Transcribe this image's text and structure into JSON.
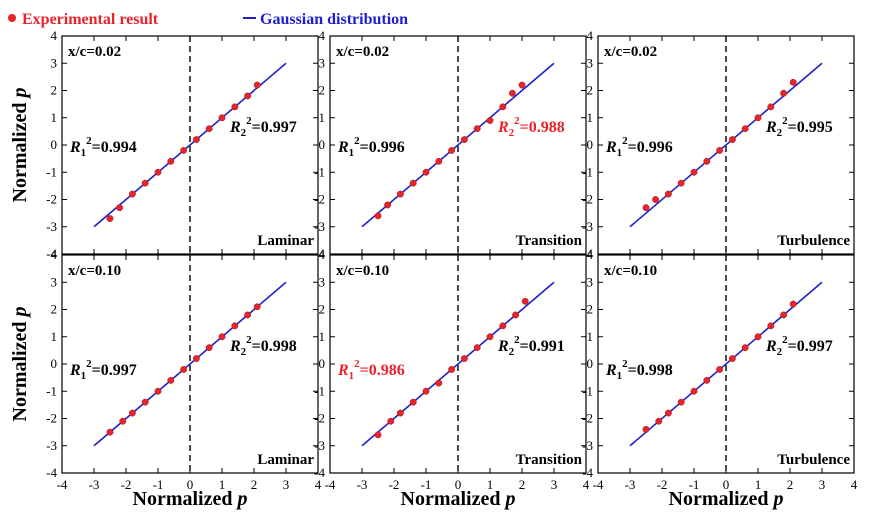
{
  "legend": {
    "experimental": "Experimental result",
    "gaussian": "Gaussian distribution",
    "colors": {
      "experimental": "#e8232a",
      "gaussian": "#1f1fcf"
    }
  },
  "axis_titles": {
    "x": "Normalized",
    "y": "Normalized",
    "symbol": "p"
  },
  "ticks": {
    "x": [
      "-4",
      "-3",
      "-2",
      "-1",
      "0",
      "1",
      "2",
      "3",
      "4"
    ],
    "y": [
      "4",
      "3",
      "2",
      "1",
      "0",
      "-1",
      "-2",
      "-3",
      "-4"
    ]
  },
  "highlight_color": "#e8232a",
  "chart_data": [
    {
      "type": "scatter",
      "xlim": [
        -4,
        4
      ],
      "ylim": [
        -4,
        4
      ],
      "position_label": "x/c=0.02",
      "regime": "Laminar",
      "r1": "=0.994",
      "r2": "=0.997",
      "r1_highlight": false,
      "r2_highlight": false,
      "fit_line": {
        "x": [
          -3,
          3
        ],
        "y": [
          -3,
          3
        ]
      },
      "points": {
        "x": [
          -2.5,
          -2.2,
          -1.8,
          -1.4,
          -1.0,
          -0.6,
          -0.2,
          0.2,
          0.6,
          1.0,
          1.4,
          1.8,
          2.1
        ],
        "y": [
          -2.7,
          -2.3,
          -1.8,
          -1.4,
          -1.0,
          -0.6,
          -0.2,
          0.2,
          0.6,
          1.0,
          1.4,
          1.8,
          2.2
        ]
      }
    },
    {
      "type": "scatter",
      "xlim": [
        -4,
        4
      ],
      "ylim": [
        -4,
        4
      ],
      "position_label": "x/c=0.02",
      "regime": "Transition",
      "r1": "=0.996",
      "r2": "=0.988",
      "r1_highlight": false,
      "r2_highlight": true,
      "fit_line": {
        "x": [
          -3,
          3
        ],
        "y": [
          -3,
          3
        ]
      },
      "points": {
        "x": [
          -2.5,
          -2.2,
          -1.8,
          -1.4,
          -1.0,
          -0.6,
          -0.2,
          0.2,
          0.6,
          1.0,
          1.4,
          1.7,
          2.0
        ],
        "y": [
          -2.6,
          -2.2,
          -1.8,
          -1.4,
          -1.0,
          -0.6,
          -0.2,
          0.2,
          0.6,
          0.9,
          1.4,
          1.9,
          2.2
        ]
      }
    },
    {
      "type": "scatter",
      "xlim": [
        -4,
        4
      ],
      "ylim": [
        -4,
        4
      ],
      "position_label": "x/c=0.02",
      "regime": "Turbulence",
      "r1": "=0.996",
      "r2": "=0.995",
      "r1_highlight": false,
      "r2_highlight": false,
      "fit_line": {
        "x": [
          -3,
          3
        ],
        "y": [
          -3,
          3
        ]
      },
      "points": {
        "x": [
          -2.5,
          -2.2,
          -1.8,
          -1.4,
          -1.0,
          -0.6,
          -0.2,
          0.2,
          0.6,
          1.0,
          1.4,
          1.8,
          2.1
        ],
        "y": [
          -2.3,
          -2.0,
          -1.8,
          -1.4,
          -1.0,
          -0.6,
          -0.2,
          0.2,
          0.6,
          1.0,
          1.4,
          1.9,
          2.3
        ]
      }
    },
    {
      "type": "scatter",
      "xlim": [
        -4,
        4
      ],
      "ylim": [
        -4,
        4
      ],
      "position_label": "x/c=0.10",
      "regime": "Laminar",
      "r1": "=0.997",
      "r2": "=0.998",
      "r1_highlight": false,
      "r2_highlight": false,
      "fit_line": {
        "x": [
          -3,
          3
        ],
        "y": [
          -3,
          3
        ]
      },
      "points": {
        "x": [
          -2.5,
          -2.1,
          -1.8,
          -1.4,
          -1.0,
          -0.6,
          -0.2,
          0.2,
          0.6,
          1.0,
          1.4,
          1.8,
          2.1
        ],
        "y": [
          -2.5,
          -2.1,
          -1.8,
          -1.4,
          -1.0,
          -0.6,
          -0.2,
          0.2,
          0.6,
          1.0,
          1.4,
          1.8,
          2.1
        ]
      }
    },
    {
      "type": "scatter",
      "xlim": [
        -4,
        4
      ],
      "ylim": [
        -4,
        4
      ],
      "position_label": "x/c=0.10",
      "regime": "Transition",
      "r1": "=0.986",
      "r2": "=0.991",
      "r1_highlight": true,
      "r2_highlight": false,
      "fit_line": {
        "x": [
          -3,
          3
        ],
        "y": [
          -3,
          3
        ]
      },
      "points": {
        "x": [
          -2.5,
          -2.1,
          -1.8,
          -1.4,
          -1.0,
          -0.6,
          -0.2,
          0.2,
          0.6,
          1.0,
          1.4,
          1.8,
          2.1
        ],
        "y": [
          -2.6,
          -2.1,
          -1.8,
          -1.4,
          -1.0,
          -0.7,
          -0.2,
          0.2,
          0.6,
          1.0,
          1.4,
          1.8,
          2.3
        ]
      }
    },
    {
      "type": "scatter",
      "xlim": [
        -4,
        4
      ],
      "ylim": [
        -4,
        4
      ],
      "position_label": "x/c=0.10",
      "regime": "Turbulence",
      "r1": "=0.998",
      "r2": "=0.997",
      "r1_highlight": false,
      "r2_highlight": false,
      "fit_line": {
        "x": [
          -3,
          3
        ],
        "y": [
          -3,
          3
        ]
      },
      "points": {
        "x": [
          -2.5,
          -2.1,
          -1.8,
          -1.4,
          -1.0,
          -0.6,
          -0.2,
          0.2,
          0.6,
          1.0,
          1.4,
          1.8,
          2.1
        ],
        "y": [
          -2.4,
          -2.1,
          -1.8,
          -1.4,
          -1.0,
          -0.6,
          -0.2,
          0.2,
          0.6,
          1.0,
          1.4,
          1.8,
          2.2
        ]
      }
    }
  ]
}
